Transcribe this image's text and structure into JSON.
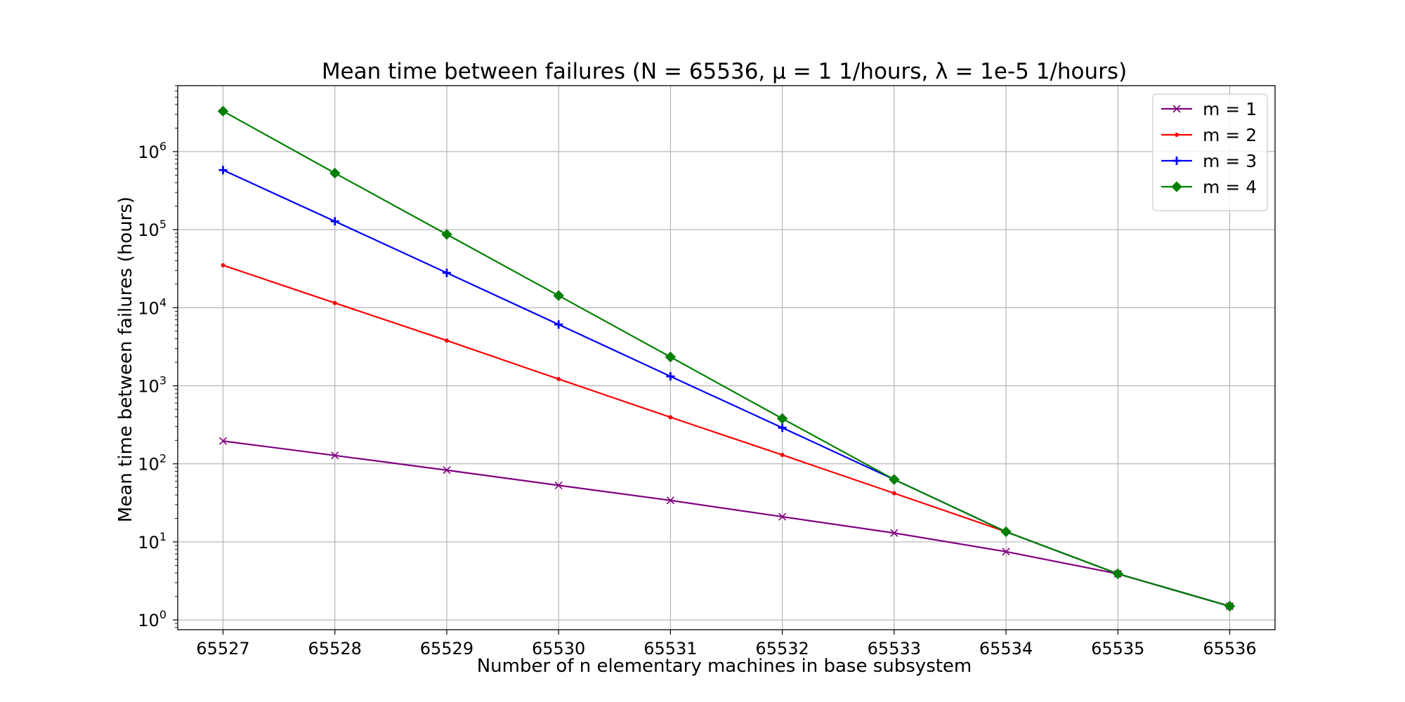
{
  "chart_data": {
    "type": "line",
    "title": "Mean time between failures (N = 65536, μ = 1 1/hours, λ = 1e-5 1/hours)",
    "xlabel": "Number of n elementary machines in base subsystem",
    "ylabel": "Mean time between failures (hours)",
    "x": [
      65527,
      65528,
      65529,
      65530,
      65531,
      65532,
      65533,
      65534,
      65535,
      65536
    ],
    "x_tick_labels": [
      "65527",
      "65528",
      "65529",
      "65530",
      "65531",
      "65532",
      "65533",
      "65534",
      "65535",
      "65536"
    ],
    "y_scale": "log",
    "ylim": [
      0.75,
      7000000
    ],
    "y_ticks": [
      {
        "base": "10",
        "exp": "0",
        "value": 1
      },
      {
        "base": "10",
        "exp": "1",
        "value": 10
      },
      {
        "base": "10",
        "exp": "2",
        "value": 100
      },
      {
        "base": "10",
        "exp": "3",
        "value": 1000
      },
      {
        "base": "10",
        "exp": "4",
        "value": 10000
      },
      {
        "base": "10",
        "exp": "5",
        "value": 100000
      },
      {
        "base": "10",
        "exp": "6",
        "value": 1000000
      }
    ],
    "grid": true,
    "legend_position": "top-right",
    "series": [
      {
        "name": "m = 1",
        "color": "#800080",
        "marker": "x",
        "values": [
          196,
          128,
          83,
          53,
          34,
          21,
          13,
          7.5,
          3.9,
          1.5
        ]
      },
      {
        "name": "m = 2",
        "color": "#ff0000",
        "marker": "dot",
        "values": [
          35000,
          11500,
          3800,
          1220,
          395,
          130,
          42,
          13.5,
          3.9,
          1.5
        ]
      },
      {
        "name": "m = 3",
        "color": "#0000ff",
        "marker": "plus",
        "values": [
          580000,
          128000,
          28000,
          6100,
          1320,
          290,
          63,
          13.5,
          3.9,
          1.5
        ]
      },
      {
        "name": "m = 4",
        "color": "#008000",
        "marker": "diamond",
        "values": [
          3300000,
          530000,
          87000,
          14300,
          2340,
          380,
          63,
          13.5,
          3.9,
          1.5
        ]
      }
    ]
  }
}
